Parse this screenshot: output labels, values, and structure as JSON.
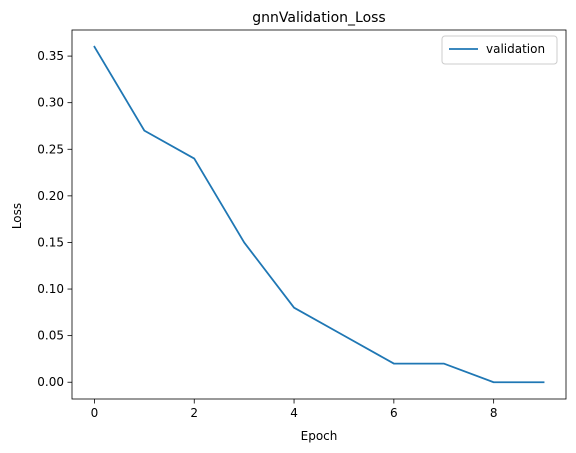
{
  "chart_data": {
    "type": "line",
    "title": "gnnValidation_Loss",
    "xlabel": "Epoch",
    "ylabel": "Loss",
    "x": [
      0,
      1,
      2,
      3,
      4,
      5,
      6,
      7,
      8,
      9
    ],
    "series": [
      {
        "name": "validation",
        "color": "#1f77b4",
        "values": [
          0.36,
          0.27,
          0.24,
          0.15,
          0.08,
          0.05,
          0.02,
          0.02,
          0.0,
          0.0
        ]
      }
    ],
    "xlim": [
      -0.45,
      9.45
    ],
    "ylim": [
      -0.018,
      0.378
    ],
    "xticks": [
      0,
      2,
      4,
      6,
      8
    ],
    "xtick_labels": [
      "0",
      "2",
      "4",
      "6",
      "8"
    ],
    "yticks": [
      0.0,
      0.05,
      0.1,
      0.15,
      0.2,
      0.25,
      0.3,
      0.35
    ],
    "ytick_labels": [
      "0.00",
      "0.05",
      "0.10",
      "0.15",
      "0.20",
      "0.25",
      "0.30",
      "0.35"
    ],
    "grid": false,
    "legend_position": "top-right"
  }
}
